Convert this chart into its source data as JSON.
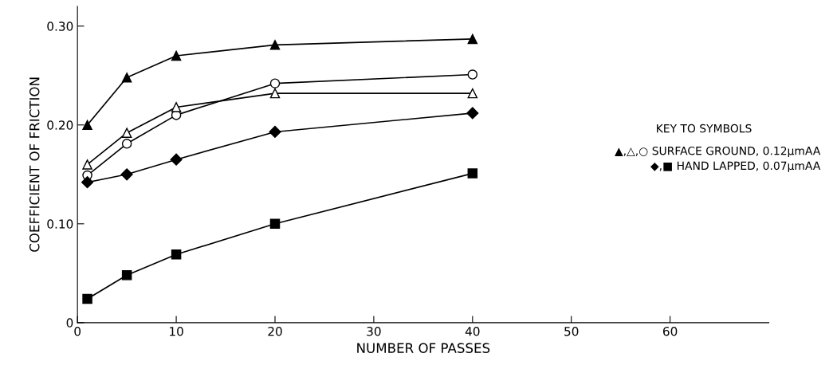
{
  "chart_data": {
    "type": "line",
    "xlabel": "NUMBER OF PASSES",
    "ylabel": "COEFFICIENT OF FRICTION",
    "x": [
      1,
      5,
      10,
      20,
      40
    ],
    "series": [
      {
        "color": "#000000",
        "marker": "triangle",
        "values": [
          0.2,
          0.248,
          0.27,
          0.281,
          0.287
        ]
      },
      {
        "color": "#000000",
        "marker": "circle",
        "colors": [
          "#ffffff",
          "#ffffff",
          "#ffffff",
          "#ffffff",
          "#ffffff"
        ],
        "values": [
          0.149,
          0.181,
          0.21,
          0.242,
          0.251
        ]
      },
      {
        "color": "#000000",
        "marker": "triangle",
        "colors": [
          "#ffffff",
          "#ffffff",
          "#ffffff",
          "#ffffff",
          "#ffffff"
        ],
        "values": [
          0.16,
          0.192,
          0.218,
          0.232,
          0.232
        ]
      },
      {
        "color": "#000000",
        "marker": "diamond",
        "values": [
          0.142,
          0.15,
          0.165,
          0.193,
          0.212
        ]
      },
      {
        "color": "#000000",
        "marker": "square",
        "values": [
          0.024,
          0.048,
          0.069,
          0.1,
          0.151
        ]
      }
    ],
    "xlim": [
      0,
      70
    ],
    "xticks": [
      0,
      10,
      20,
      30,
      40,
      50,
      60
    ],
    "ylim": [
      0,
      0.32
    ],
    "yticks": [
      0,
      {
        "value": 0.1,
        "label": "0.10"
      },
      {
        "value": 0.2,
        "label": "0.20"
      },
      {
        "value": 0.3,
        "label": "0.30"
      }
    ],
    "grid": false,
    "legend": false,
    "line_style": "solid",
    "annotations": [
      "KEY TO SYMBOLS",
      "▲,△,○ SURFACE GROUND, 0.12μmAA",
      "◆,■ HAND LAPPED, 0.07μmAA"
    ]
  }
}
